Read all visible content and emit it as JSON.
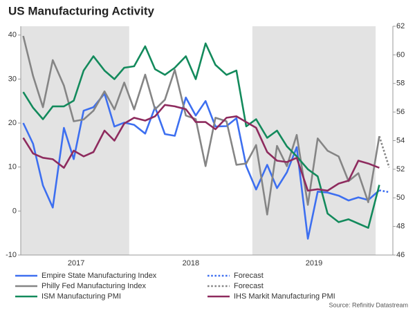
{
  "chart_data": {
    "type": "line",
    "title": "US Manufacturing Activity",
    "source": "Source: Refinitiv Datastream",
    "x": [
      2017.14,
      2017.22,
      2017.3,
      2017.38,
      2017.47,
      2017.55,
      2017.63,
      2017.71,
      2017.8,
      2017.88,
      2017.96,
      2018.04,
      2018.13,
      2018.21,
      2018.29,
      2018.37,
      2018.46,
      2018.54,
      2018.62,
      2018.7,
      2018.79,
      2018.87,
      2018.95,
      2019.03,
      2019.12,
      2019.2,
      2019.28,
      2019.36,
      2019.45,
      2019.53,
      2019.61,
      2019.7,
      2019.78,
      2019.86,
      2019.94,
      2020.03,
      2020.11
    ],
    "xlim": [
      2017.12,
      2020.14
    ],
    "xticks": [
      {
        "value": 2017.57,
        "label": "2017"
      },
      {
        "value": 2018.5,
        "label": "2018"
      },
      {
        "value": 2019.5,
        "label": "2019"
      }
    ],
    "shaded_x_ranges": [
      [
        2017.12,
        2018.0
      ],
      [
        2019.0,
        2020.0
      ]
    ],
    "ylim": [
      -10,
      42
    ],
    "yticks": [
      -10,
      0,
      10,
      20,
      30,
      40
    ],
    "y2lim": [
      46,
      62
    ],
    "y2ticks": [
      46,
      48,
      50,
      52,
      54,
      56,
      58,
      60,
      62
    ],
    "series": [
      {
        "name": "Empire State Manufacturing Index",
        "color": "#3d6ff0",
        "style": "solid",
        "values": [
          20,
          15.3,
          5.8,
          0.8,
          18.9,
          11.8,
          22.8,
          23.6,
          26.7,
          19.2,
          20.1,
          19.6,
          17.6,
          23.6,
          17.5,
          17.1,
          25.8,
          21.7,
          25,
          19.2,
          19.3,
          21.1,
          10.2,
          4.9,
          10.5,
          5.2,
          8.8,
          14.5,
          -6.3,
          4.4,
          4.2,
          3.5,
          2.4,
          3.1,
          2.5,
          4.7,
          null
        ]
      },
      {
        "name": "Forecast",
        "color": "#3d6ff0",
        "style": "dotted",
        "values": [
          null,
          null,
          null,
          null,
          null,
          null,
          null,
          null,
          null,
          null,
          null,
          null,
          null,
          null,
          null,
          null,
          null,
          null,
          null,
          null,
          null,
          null,
          null,
          null,
          null,
          null,
          null,
          null,
          null,
          null,
          null,
          null,
          null,
          null,
          null,
          4.7,
          4.3
        ]
      },
      {
        "name": "Philly Fed Manufacturing Index",
        "color": "#858585",
        "style": "solid",
        "values": [
          39.8,
          30.7,
          23.6,
          34.3,
          28.5,
          20.4,
          20.8,
          22.8,
          27.2,
          23.1,
          29.2,
          23.1,
          31,
          23.1,
          25.3,
          32.1,
          21.7,
          20.9,
          10.2,
          21.2,
          20.4,
          10.5,
          10.8,
          15,
          -0.8,
          14.8,
          10.2,
          17.3,
          1.4,
          16.5,
          13.7,
          12.4,
          6.8,
          8.6,
          2,
          17,
          null
        ]
      },
      {
        "name": "Forecast",
        "color": "#858585",
        "style": "dotted",
        "values": [
          null,
          null,
          null,
          null,
          null,
          null,
          null,
          null,
          null,
          null,
          null,
          null,
          null,
          null,
          null,
          null,
          null,
          null,
          null,
          null,
          null,
          null,
          null,
          null,
          null,
          null,
          null,
          null,
          null,
          null,
          null,
          null,
          null,
          null,
          null,
          17,
          9.9
        ]
      },
      {
        "name": "ISM Manufacturing PMI",
        "color": "#138a5c",
        "style": "solid",
        "axis": "y2",
        "values": [
          57.4,
          56.3,
          55.5,
          56.4,
          56.4,
          56.8,
          58.9,
          59.9,
          58.9,
          58.3,
          59.1,
          59.2,
          60.6,
          59,
          58.6,
          59.1,
          59.9,
          58.3,
          60.8,
          59.3,
          58.6,
          58.9,
          55,
          55.5,
          54.2,
          54.7,
          53.6,
          52.9,
          52,
          51.5,
          48.9,
          48.3,
          48.5,
          48.2,
          47.9,
          50.9,
          null
        ]
      },
      {
        "name": "IHS Markit Manufacturing PMI",
        "color": "#8e2b5e",
        "style": "solid",
        "axis": "y2",
        "values": [
          54.2,
          53.1,
          52.8,
          52.7,
          52.1,
          53.3,
          52.9,
          53.2,
          54.7,
          54,
          55.2,
          55.6,
          55.4,
          55.7,
          56.5,
          56.4,
          56.2,
          55.3,
          55.3,
          54.8,
          55.6,
          55.7,
          55.3,
          54.9,
          53.2,
          52.6,
          52.5,
          52.8,
          50.5,
          50.6,
          50.5,
          51,
          51.2,
          52.6,
          52.4,
          52.1,
          null
        ]
      }
    ]
  }
}
